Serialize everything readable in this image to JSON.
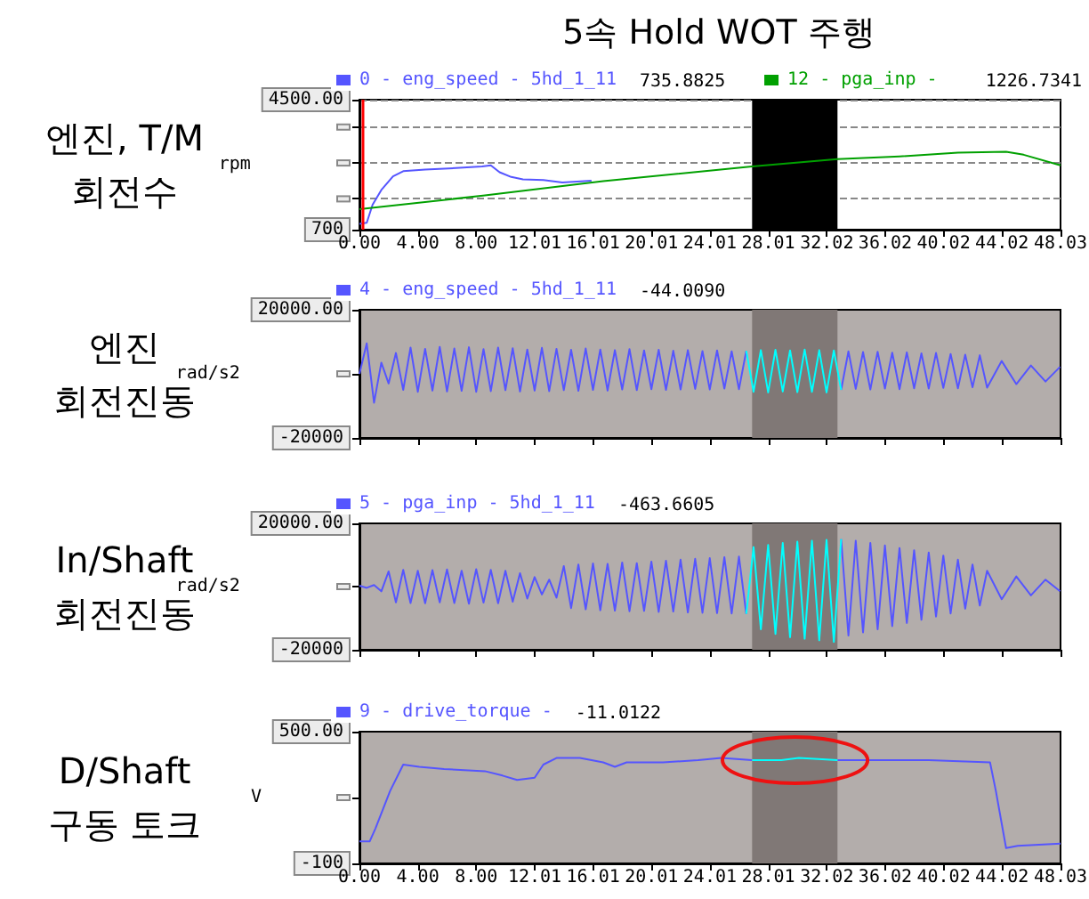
{
  "chart_data": [
    {
      "type": "line",
      "title": "5속 Hold WOT 주행",
      "subtitle": "엔진, T/M\n회전수",
      "ylabel": "rpm",
      "series": [
        {
          "name": "0 - eng_speed - 5hd_1_11",
          "color": "#5555ff",
          "x": [
            0,
            0.5,
            0.9,
            1.5,
            2.3,
            3.0,
            4.5,
            6.6,
            8.4,
            9.0,
            9.6,
            10.4,
            11.2,
            12.6,
            13.9,
            15.9
          ],
          "values": [
            870,
            900,
            1430,
            1860,
            2260,
            2410,
            2460,
            2500,
            2550,
            2580,
            2380,
            2240,
            2170,
            2150,
            2080,
            2130
          ]
        },
        {
          "name": "12 - pga_inp -",
          "color": "#00a000",
          "x": [
            0,
            8.6,
            16.7,
            26.9,
            32.75,
            37,
            41,
            44.3,
            45.5,
            48.03
          ],
          "values": [
            1300,
            1700,
            2120,
            2550,
            2760,
            2840,
            2950,
            2980,
            2890,
            2580
          ]
        }
      ],
      "annotations": [
        "735.8825",
        "1226.7341"
      ],
      "xlim": [
        0,
        48.03
      ],
      "xticks": [
        {
          "value": 0,
          "label": "0.00"
        },
        {
          "value": 4,
          "label": "4.00"
        },
        {
          "value": 8,
          "label": "8.00"
        },
        12.01,
        16.01,
        20.01,
        24.01,
        28.01,
        32.02,
        36.02,
        40.02,
        44.02,
        48.03
      ],
      "ylim": [
        700,
        4500
      ],
      "yticks": [
        700,
        {
          "value": 1600,
          "label": null
        },
        {
          "value": 2650,
          "label": null
        },
        {
          "value": 3700,
          "label": null
        },
        {
          "value": 4500,
          "label": "4500.00"
        }
      ],
      "grid": "y",
      "legend": "top",
      "marker": "none",
      "bands": [
        {
          "axis": "x",
          "from": 26.9,
          "to": 32.75,
          "color": "#000000"
        }
      ],
      "ref_lines": [
        {
          "axis": "x",
          "value": 0.2,
          "color": "#ff0000"
        }
      ]
    },
    {
      "type": "line",
      "subtitle": "엔진\n회전진동",
      "ylabel": "rad/s2",
      "series": [
        {
          "name": "4 - eng_speed - 5hd_1_11",
          "color": "#5555ff",
          "x": [
            0,
            0.5,
            1,
            1.5,
            2,
            2.5,
            3,
            3.5,
            4,
            4.5,
            5,
            5.5,
            6,
            6.5,
            7,
            7.5,
            8,
            8.5,
            9,
            9.5,
            10,
            10.5,
            11,
            11.5,
            12,
            12.5,
            13,
            13.5,
            14,
            14.5,
            15,
            15.5,
            16,
            16.5,
            17,
            17.5,
            18,
            18.5,
            19,
            19.5,
            20,
            20.5,
            21,
            21.5,
            22,
            22.5,
            23,
            23.5,
            24,
            24.5,
            25,
            25.5,
            26,
            26.5,
            30,
            33,
            33.5,
            34,
            34.5,
            35,
            35.5,
            36,
            36.5,
            37,
            37.5,
            38,
            38.5,
            39,
            39.5,
            40,
            40.5,
            41,
            41.5,
            42,
            42.5,
            43,
            44,
            45,
            46,
            47,
            48
          ],
          "values": [
            0,
            9500,
            -9000,
            3500,
            -3000,
            6500,
            -5000,
            8200,
            -5600,
            7800,
            -5200,
            8400,
            -5500,
            7900,
            -5300,
            8300,
            -5600,
            7700,
            -5400,
            8200,
            -5100,
            8000,
            -5500,
            7600,
            -5200,
            8100,
            -5400,
            7800,
            -5100,
            7500,
            -5300,
            7900,
            -5000,
            7600,
            -5200,
            7400,
            -4900,
            7700,
            -5100,
            7300,
            -4800,
            7500,
            -5000,
            7200,
            -4900,
            7400,
            -4700,
            7100,
            -4900,
            7300,
            -4600,
            7000,
            -4800,
            7200,
            null,
            -5000,
            7000,
            -4700,
            6800,
            -4900,
            6900,
            -4600,
            6600,
            -4800,
            6700,
            -4500,
            6400,
            -4600,
            6500,
            -4400,
            6200,
            -4500,
            6000,
            -4200,
            5800,
            -4300,
            4000,
            -3200,
            2600,
            -2400,
            2200
          ]
        },
        {
          "color": "#00ffff",
          "x": [
            26.5,
            27,
            27.5,
            28,
            28.5,
            29,
            29.5,
            30,
            30.5,
            31,
            31.5,
            32,
            32.5,
            33
          ],
          "values": [
            7200,
            -5600,
            7400,
            -5800,
            7500,
            -5500,
            7300,
            -5700,
            7600,
            -5600,
            7400,
            -5800,
            7300,
            -5000
          ]
        }
      ],
      "annotations": [
        "-44.0090"
      ],
      "xlim": [
        0,
        48.03
      ],
      "xticks": [
        {
          "value": 0,
          "label": null
        },
        {
          "value": 4,
          "label": null
        },
        {
          "value": 8,
          "label": null
        },
        {
          "value": 12.01,
          "label": null
        },
        {
          "value": 16.01,
          "label": null
        },
        {
          "value": 20.01,
          "label": null
        },
        {
          "value": 24.01,
          "label": null
        },
        {
          "value": 28.01,
          "label": null
        },
        {
          "value": 32.02,
          "label": null
        },
        {
          "value": 36.02,
          "label": null
        },
        {
          "value": 40.02,
          "label": null
        },
        {
          "value": 44.02,
          "label": null
        },
        {
          "value": 48.03,
          "label": null
        }
      ],
      "ylim": [
        -20000,
        20000
      ],
      "yticks": [
        -20000,
        {
          "value": 0,
          "label": null
        },
        {
          "value": 20000,
          "label": "20000.00"
        }
      ],
      "tick_labels": "y",
      "legend": "top",
      "marker": "none",
      "bands": [
        {
          "axis": "x",
          "from": 26.9,
          "to": 32.75,
          "color": "#807876"
        }
      ]
    },
    {
      "type": "line",
      "subtitle": "In/Shaft\n회전진동",
      "ylabel": "rad/s2",
      "series": [
        {
          "name": "5 - pga_inp - 5hd_1_11",
          "color": "#5555ff",
          "x": [
            0,
            0.5,
            1,
            1.5,
            2,
            2.5,
            3,
            3.5,
            4,
            4.5,
            5,
            5.5,
            6,
            6.5,
            7,
            7.5,
            8,
            8.5,
            9,
            9.5,
            10,
            10.5,
            11,
            11.5,
            12,
            12.5,
            13,
            13.5,
            14,
            14.5,
            15,
            15.5,
            16,
            16.5,
            17,
            17.5,
            18,
            18.5,
            19,
            19.5,
            20,
            20.5,
            21,
            21.5,
            22,
            22.5,
            23,
            23.5,
            24,
            24.5,
            25,
            25.5,
            26,
            26.5,
            30,
            33,
            33.5,
            34,
            34.5,
            35,
            35.5,
            36,
            36.5,
            37,
            37.5,
            38,
            38.5,
            39,
            39.5,
            40,
            40.5,
            41,
            41.5,
            42,
            42.5,
            43,
            44,
            45,
            46,
            47,
            48
          ],
          "values": [
            300,
            -400,
            500,
            -1500,
            4800,
            -5000,
            5300,
            -5200,
            5000,
            -5300,
            5200,
            -5000,
            5400,
            -5200,
            5000,
            -5400,
            5500,
            -5100,
            5300,
            -5300,
            5000,
            -4800,
            4200,
            -3800,
            3000,
            -2500,
            2200,
            -3500,
            6500,
            -6800,
            7000,
            -7200,
            7300,
            -7500,
            7200,
            -7600,
            7600,
            -7800,
            7400,
            -7700,
            7900,
            -8000,
            8200,
            -7900,
            8500,
            -8200,
            8800,
            -8300,
            9000,
            -8400,
            9300,
            -8500,
            9500,
            -8600,
            null,
            15000,
            -15500,
            14500,
            -14500,
            13800,
            -13500,
            13000,
            -12500,
            12200,
            -11500,
            11500,
            -10500,
            10800,
            -9500,
            9800,
            -8500,
            8500,
            -7000,
            7000,
            -6000,
            5000,
            -4000,
            3200,
            -2800,
            2200,
            -1500
          ]
        },
        {
          "color": "#00ffff",
          "x": [
            26.5,
            27,
            27.5,
            28,
            28.5,
            29,
            29.5,
            30,
            30.5,
            31,
            31.5,
            32,
            32.5,
            33
          ],
          "values": [
            -8600,
            12500,
            -13500,
            13200,
            -15000,
            13800,
            -16000,
            14200,
            -16500,
            14500,
            -17000,
            14800,
            -17500,
            15000
          ]
        }
      ],
      "annotations": [
        "-463.6605"
      ],
      "xlim": [
        0,
        48.03
      ],
      "xticks": [
        {
          "value": 0,
          "label": null
        },
        {
          "value": 4,
          "label": null
        },
        {
          "value": 8,
          "label": null
        },
        {
          "value": 12.01,
          "label": null
        },
        {
          "value": 16.01,
          "label": null
        },
        {
          "value": 20.01,
          "label": null
        },
        {
          "value": 24.01,
          "label": null
        },
        {
          "value": 28.01,
          "label": null
        },
        {
          "value": 32.02,
          "label": null
        },
        {
          "value": 36.02,
          "label": null
        },
        {
          "value": 40.02,
          "label": null
        },
        {
          "value": 44.02,
          "label": null
        },
        {
          "value": 48.03,
          "label": null
        }
      ],
      "ylim": [
        -20000,
        20000
      ],
      "yticks": [
        -20000,
        {
          "value": 0,
          "label": null
        },
        {
          "value": 20000,
          "label": "20000.00"
        }
      ],
      "tick_labels": "y",
      "legend": "top",
      "marker": "none",
      "bands": [
        {
          "axis": "x",
          "from": 26.9,
          "to": 32.75,
          "color": "#807876"
        }
      ]
    },
    {
      "type": "line",
      "subtitle": "D/Shaft\n구동 토크",
      "ylabel": "V",
      "series": [
        {
          "name": "9 - drive_torque -",
          "color": "#5555ff",
          "x": [
            0,
            0.7,
            1.1,
            2.1,
            3.0,
            4.1,
            5.8,
            8.6,
            9.8,
            10.8,
            12.0,
            12.6,
            13.5,
            15.1,
            16.7,
            17.5,
            18.3,
            20.8,
            23.2,
            24.8,
            26.9,
            30,
            32.75,
            34.9,
            39.0,
            43.2,
            43.6,
            44.3,
            45.1,
            48.03
          ],
          "values": [
            0,
            0,
            60,
            230,
            350,
            340,
            330,
            320,
            300,
            280,
            290,
            350,
            380,
            380,
            360,
            340,
            360,
            360,
            370,
            380,
            370,
            null,
            370,
            370,
            370,
            360,
            230,
            -30,
            -20,
            -10
          ]
        },
        {
          "color": "#00ffff",
          "x": [
            26.9,
            28.9,
            30.1,
            32.75
          ],
          "values": [
            370,
            370,
            380,
            370
          ]
        }
      ],
      "annotations": [
        "-11.0122"
      ],
      "xlim": [
        0,
        48.03
      ],
      "xticks": [
        {
          "value": 0,
          "label": "0.00"
        },
        {
          "value": 4,
          "label": "4.00"
        },
        {
          "value": 8,
          "label": "8.00"
        },
        12.01,
        16.01,
        20.01,
        24.01,
        28.01,
        32.02,
        36.02,
        40.02,
        44.02,
        48.03
      ],
      "ylim": [
        -100,
        500
      ],
      "yticks": [
        -100,
        {
          "value": 200,
          "label": null
        },
        {
          "value": 500,
          "label": "500.00"
        }
      ],
      "legend": "top",
      "marker": "none",
      "bands": [
        {
          "axis": "x",
          "from": 26.9,
          "to": 32.75,
          "color": "#807876"
        }
      ]
    }
  ]
}
